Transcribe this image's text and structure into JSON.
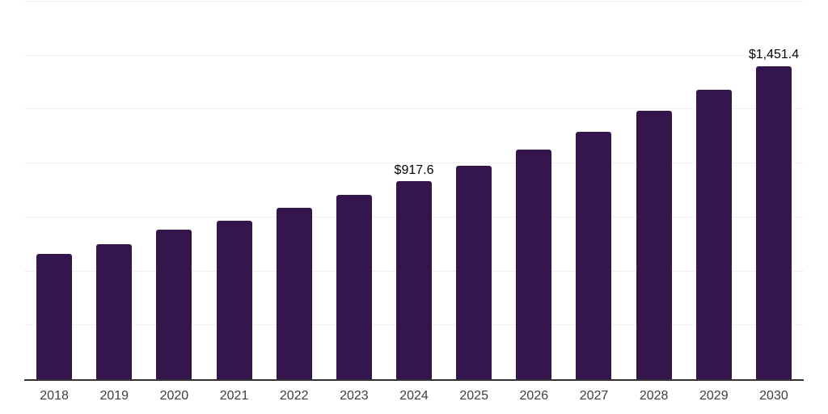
{
  "chart_data": {
    "type": "bar",
    "title": "",
    "xlabel": "",
    "ylabel": "",
    "categories": [
      "2018",
      "2019",
      "2020",
      "2021",
      "2022",
      "2023",
      "2024",
      "2025",
      "2026",
      "2027",
      "2028",
      "2029",
      "2030"
    ],
    "values": [
      582,
      624,
      693,
      733,
      793,
      855,
      917.6,
      989,
      1066,
      1147,
      1243,
      1342,
      1451.4
    ],
    "data_labels": [
      "",
      "",
      "",
      "",
      "",
      "",
      "$917.6",
      "",
      "",
      "",
      "",
      "",
      "$1,451.4"
    ],
    "ylim": [
      0,
      1750
    ],
    "grid_step": 250,
    "grid": true,
    "legend": false,
    "style": {
      "background": "#ffffff",
      "bar_color": "#35164c",
      "grid_color": "#efeff2",
      "axis_line_color": "#333333",
      "tick_label_color": "#3e3e3e",
      "data_label_color": "#000000"
    }
  }
}
